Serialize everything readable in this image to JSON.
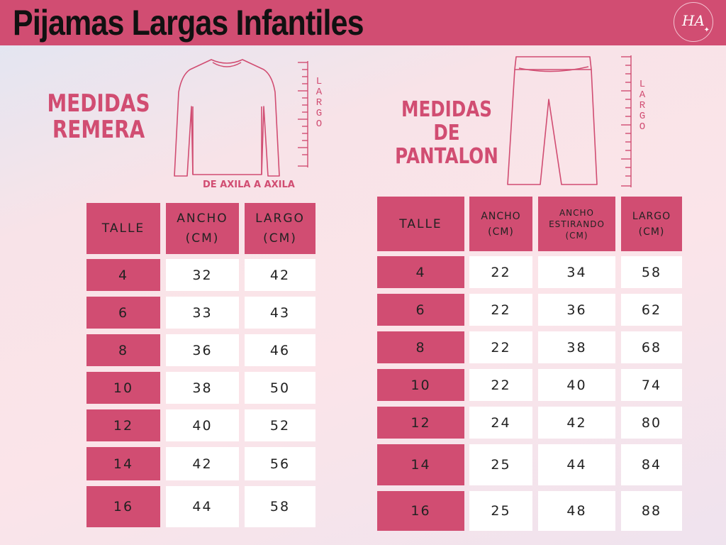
{
  "header": {
    "title": "Pijamas Largas Infantiles",
    "logo_text": "HA",
    "colors": {
      "band": "#d14d72",
      "accent": "#d14d72",
      "title_text": "#111111"
    }
  },
  "remera": {
    "title": "MEDIDAS REMERA",
    "largo_label": "LARGO",
    "axila_label": "DE AXILA A AXILA",
    "illustration_icon": "long-sleeve-shirt-icon",
    "columns": [
      "TALLE",
      "ANCHO (CM)",
      "LARGO (CM)"
    ],
    "rows": [
      [
        "4",
        "32",
        "42"
      ],
      [
        "6",
        "33",
        "43"
      ],
      [
        "8",
        "36",
        "46"
      ],
      [
        "10",
        "38",
        "50"
      ],
      [
        "12",
        "40",
        "52"
      ],
      [
        "14",
        "42",
        "56"
      ],
      [
        "16",
        "44",
        "58"
      ]
    ]
  },
  "pantalon": {
    "title": "MEDIDAS DE PANTALON",
    "largo_label": "LARGO",
    "illustration_icon": "long-pants-icon",
    "columns": [
      "TALLE",
      "ANCHO (CM)",
      "ANCHO ESTIRANDO (CM)",
      "LARGO (CM)"
    ],
    "rows": [
      [
        "4",
        "22",
        "34",
        "58"
      ],
      [
        "6",
        "22",
        "36",
        "62"
      ],
      [
        "8",
        "22",
        "38",
        "68"
      ],
      [
        "10",
        "22",
        "40",
        "74"
      ],
      [
        "12",
        "24",
        "42",
        "80"
      ],
      [
        "14",
        "25",
        "44",
        "84"
      ],
      [
        "16",
        "25",
        "48",
        "88"
      ]
    ]
  }
}
